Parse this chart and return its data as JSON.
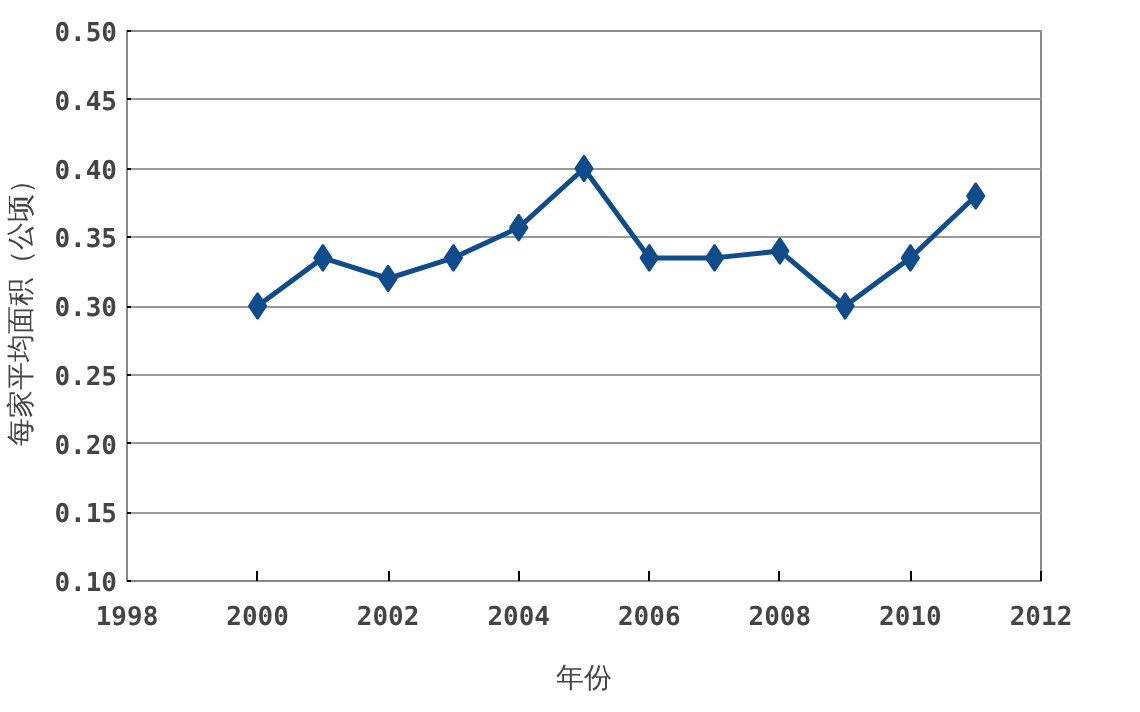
{
  "chart_data": {
    "type": "line",
    "xlabel": "年份",
    "ylabel": "每家平均面积（公顷）",
    "x": [
      2000,
      2001,
      2002,
      2003,
      2004,
      2005,
      2006,
      2007,
      2008,
      2009,
      2010,
      2011
    ],
    "series": [
      {
        "color": "#0f4c8c",
        "values": [
          0.3,
          0.335,
          0.32,
          0.335,
          0.357,
          0.4,
          0.335,
          0.335,
          0.34,
          0.3,
          0.335,
          0.38
        ]
      }
    ],
    "xlim": [
      1998,
      2012
    ],
    "xticks": [
      1998,
      2000,
      2002,
      2004,
      2006,
      2008,
      2010,
      2012
    ],
    "ylim": [
      0.1,
      0.5
    ],
    "yticks": [
      {
        "value": 0.1,
        "label": "0.10"
      },
      {
        "value": 0.15,
        "label": "0.15"
      },
      {
        "value": 0.2,
        "label": "0.20"
      },
      {
        "value": 0.25,
        "label": "0.25"
      },
      {
        "value": 0.3,
        "label": "0.30"
      },
      {
        "value": 0.35,
        "label": "0.35"
      },
      {
        "value": 0.4,
        "label": "0.40"
      },
      {
        "value": 0.45,
        "label": "0.45"
      },
      {
        "value": 0.5,
        "label": "0.50"
      }
    ],
    "grid": "y",
    "marker": "diamond",
    "line_style": "solid"
  }
}
